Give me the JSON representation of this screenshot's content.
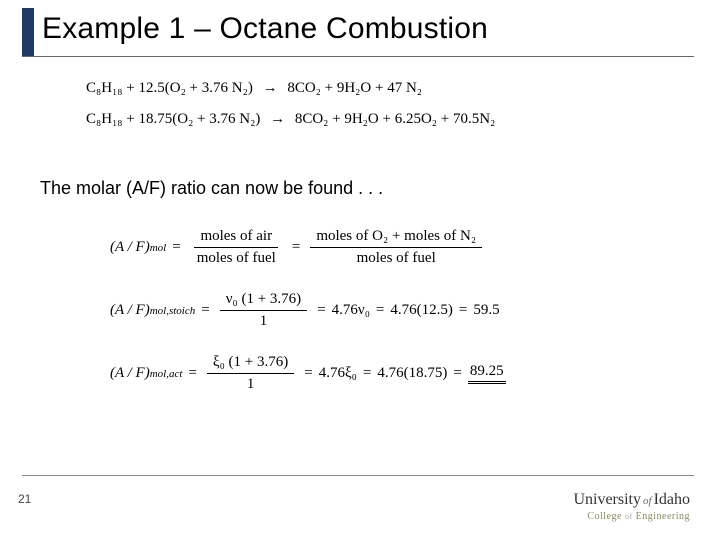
{
  "colors": {
    "accent": "#1f3864",
    "rule": "#666666",
    "text": "#000000",
    "bg": "#ffffff"
  },
  "title": "Example 1 – Octane Combustion",
  "equations": {
    "line1": {
      "lhs": "C₈H₁₈ + 12.5(O₂ + 3.76 N₂)",
      "arrow": "→",
      "rhs": "8CO₂ + 9H₂O +   47 N₂"
    },
    "line2": {
      "lhs": "C₈H₁₈ + 18.75(O₂ + 3.76 N₂)",
      "arrow": "→",
      "rhs": "8CO₂ + 9H₂O + 6.25O₂ + 70.5N₂"
    }
  },
  "body_text": "The molar (A/F) ratio can now be found . . .",
  "formulas": {
    "f1": {
      "lhs_label": "(A / F)",
      "lhs_sub": "mol",
      "frac1_num": "moles of air",
      "frac1_den": "moles of fuel",
      "frac2_num": "moles of O₂ + moles of N₂",
      "frac2_den": "moles of fuel"
    },
    "f2": {
      "lhs_label": "(A / F)",
      "lhs_sub": "mol,stoich",
      "frac_num": "ν₀ (1 + 3.76)",
      "frac_den": "1",
      "mid1": "4.76ν₀",
      "mid2": "4.76(12.5)",
      "result": "59.5"
    },
    "f3": {
      "lhs_label": "(A / F)",
      "lhs_sub": "mol,act",
      "frac_num": "ξ₀ (1 + 3.76)",
      "frac_den": "1",
      "mid1": "4.76ξ₀",
      "mid2": "4.76(18.75)",
      "result": "89.25"
    }
  },
  "page_number": "21",
  "logo": {
    "main_a": "University",
    "of": "of",
    "main_b": "Idaho",
    "sub_a": "College",
    "sub_of": "of",
    "sub_b": "Engineering"
  }
}
